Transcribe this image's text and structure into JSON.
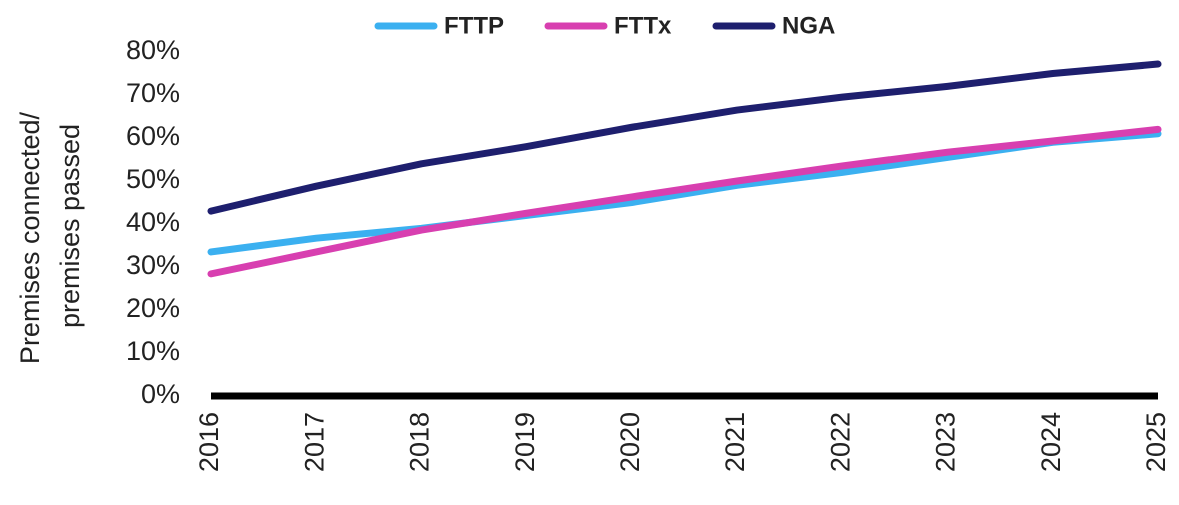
{
  "chart_data": {
    "type": "line",
    "y_label": [
      "Premises connected/",
      "premises passed"
    ],
    "categories": [
      "2016",
      "2017",
      "2018",
      "2019",
      "2020",
      "2021",
      "2022",
      "2023",
      "2024",
      "2025"
    ],
    "series": [
      {
        "name": "FTTP",
        "color": "#3bb0f0",
        "values": [
          33.5,
          36.7,
          39,
          42,
          45,
          49,
          52,
          55.5,
          59,
          61
        ]
      },
      {
        "name": "FTTx",
        "color": "#d83fb0",
        "values": [
          28.4,
          33.5,
          38.6,
          42.5,
          46.3,
          50,
          53.5,
          56.7,
          59.3,
          62
        ]
      },
      {
        "name": "NGA",
        "color": "#1e1f6e",
        "values": [
          43,
          48.8,
          54,
          58,
          62.5,
          66.5,
          69.5,
          72,
          75,
          77.2
        ]
      }
    ],
    "ylim": [
      0,
      80
    ],
    "yticks": [
      {
        "value": 0,
        "label": "0%"
      },
      {
        "value": 10,
        "label": "10%"
      },
      {
        "value": 20,
        "label": "20%"
      },
      {
        "value": 30,
        "label": "30%"
      },
      {
        "value": 40,
        "label": "40%"
      },
      {
        "value": 50,
        "label": "50%"
      },
      {
        "value": 60,
        "label": "60%"
      },
      {
        "value": 70,
        "label": "70%"
      },
      {
        "value": 80,
        "label": "80%"
      }
    ],
    "legend": "top"
  }
}
